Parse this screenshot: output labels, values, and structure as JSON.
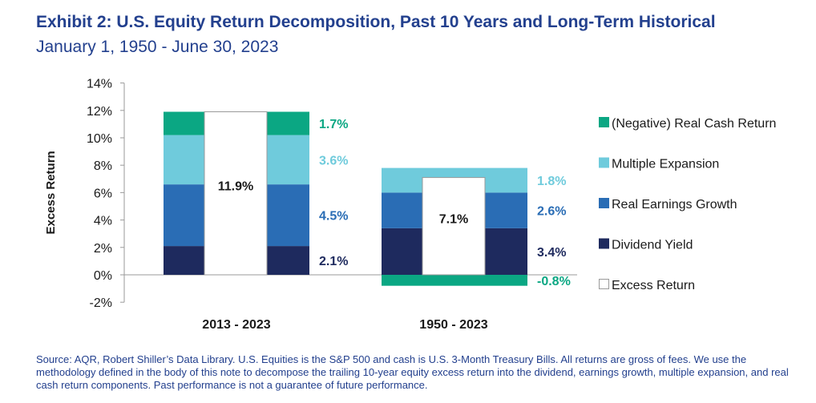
{
  "title": "Exhibit 2: U.S. Equity Return Decomposition, Past 10 Years and Long-Term Historical",
  "subtitle": "January 1, 1950 - June 30, 2023",
  "source": "Source: AQR, Robert Shiller’s Data Library. U.S. Equities is the S&P 500 and cash is U.S. 3-Month Treasury Bills. All returns are gross of fees. We use the methodology defined in the body of this note to decompose the trailing 10-year equity excess return into the dividend, earnings growth, multiple expansion, and real cash return components. Past performance is not a guarantee of future performance.",
  "colors": {
    "dividend": "#1e2a5e",
    "earnings": "#2a6db5",
    "multiple": "#6fcbdc",
    "cash": "#0ba783",
    "excess_border": "#9a9a9a",
    "text": "#1a1a1a",
    "axis": "#9a9a9a"
  },
  "chart_data": {
    "type": "bar",
    "stacked": true,
    "ylabel": "Excess Return",
    "ylim": [
      -2,
      14
    ],
    "yticks": [
      "-2%",
      "0%",
      "2%",
      "4%",
      "6%",
      "8%",
      "10%",
      "12%",
      "14%"
    ],
    "ytick_values": [
      -2,
      0,
      2,
      4,
      6,
      8,
      10,
      12,
      14
    ],
    "categories": [
      "2013 - 2023",
      "1950 - 2023"
    ],
    "series": [
      {
        "key": "dividend",
        "name": "Dividend Yield",
        "values": [
          2.1,
          3.4
        ],
        "labels": [
          "2.1%",
          "3.4%"
        ]
      },
      {
        "key": "earnings",
        "name": "Real Earnings Growth",
        "values": [
          4.5,
          2.6
        ],
        "labels": [
          "4.5%",
          "2.6%"
        ]
      },
      {
        "key": "multiple",
        "name": "Multiple Expansion",
        "values": [
          3.6,
          1.8
        ],
        "labels": [
          "3.6%",
          "1.8%"
        ]
      },
      {
        "key": "cash",
        "name": "(Negative) Real Cash Return",
        "values": [
          1.7,
          -0.8
        ],
        "labels": [
          "1.7%",
          "-0.8%"
        ]
      }
    ],
    "excess_return": {
      "name": "Excess Return",
      "values": [
        11.9,
        7.1
      ],
      "labels": [
        "11.9%",
        "7.1%"
      ]
    },
    "legend": [
      {
        "key": "cash",
        "label": "(Negative) Real Cash Return"
      },
      {
        "key": "multiple",
        "label": "Multiple Expansion"
      },
      {
        "key": "earnings",
        "label": "Real Earnings Growth"
      },
      {
        "key": "dividend",
        "label": "Dividend Yield"
      },
      {
        "key": "excess",
        "label": "Excess Return"
      }
    ],
    "legend_position": "right"
  }
}
